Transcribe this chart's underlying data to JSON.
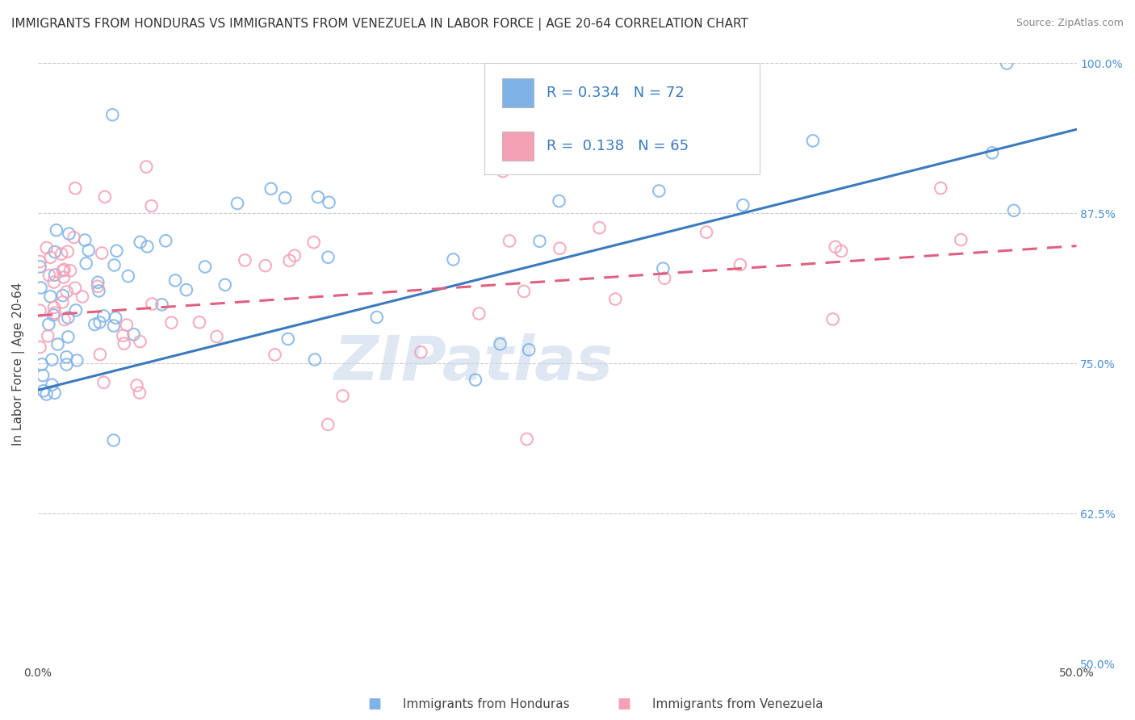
{
  "title": "IMMIGRANTS FROM HONDURAS VS IMMIGRANTS FROM VENEZUELA IN LABOR FORCE | AGE 20-64 CORRELATION CHART",
  "source": "Source: ZipAtlas.com",
  "ylabel": "In Labor Force | Age 20-64",
  "xlim": [
    0.0,
    0.5
  ],
  "ylim": [
    0.5,
    1.0
  ],
  "xticks": [
    0.0,
    0.1,
    0.2,
    0.3,
    0.4,
    0.5
  ],
  "xticklabels": [
    "0.0%",
    "",
    "",
    "",
    "",
    "50.0%"
  ],
  "yticks": [
    0.5,
    0.625,
    0.75,
    0.875,
    1.0
  ],
  "yticklabels": [
    "50.0%",
    "62.5%",
    "75.0%",
    "87.5%",
    "100.0%"
  ],
  "honduras_color": "#7fb3e8",
  "venezuela_color": "#f4a0b5",
  "trend_honduras_color": "#3a7abf",
  "trend_venezuela_color": "#e06080",
  "R_honduras": 0.334,
  "N_honduras": 72,
  "R_venezuela": 0.138,
  "N_venezuela": 65,
  "legend_labels": [
    "Immigrants from Honduras",
    "Immigrants from Venezuela"
  ],
  "watermark": "ZIPatlas",
  "watermark_color": "#c8d8ea",
  "background_color": "#ffffff",
  "grid_color": "#cccccc",
  "title_fontsize": 11,
  "axis_label_fontsize": 11,
  "tick_fontsize": 10,
  "tick_color_right": "#4a90d9",
  "seed": 42,
  "trend_h_x0": 0.0,
  "trend_h_y0": 0.728,
  "trend_h_x1": 0.5,
  "trend_h_y1": 0.945,
  "trend_v_x0": 0.0,
  "trend_v_y0": 0.79,
  "trend_v_x1": 0.5,
  "trend_v_y1": 0.848
}
